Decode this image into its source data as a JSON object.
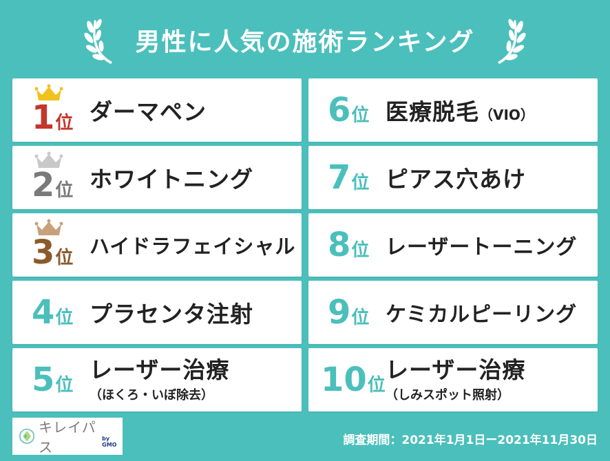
{
  "title": "男性に人気の施術ランキング",
  "rank_suffix": "位",
  "colors": {
    "background": "#4bbfbb",
    "gold": "#c4362c",
    "silver": "#7a7a7a",
    "bronze": "#8b5a2b",
    "teal_rank": "#4bbfbb",
    "crown_gold": "#f1c11d",
    "crown_silver": "#c8c8c8",
    "crown_bronze": "#c7a07c"
  },
  "ranking": [
    {
      "rank": "1",
      "name": "ダーマペン"
    },
    {
      "rank": "2",
      "name": "ホワイトニング"
    },
    {
      "rank": "3",
      "name": "ハイドラフェイシャル"
    },
    {
      "rank": "4",
      "name": "プラセンタ注射"
    },
    {
      "rank": "5",
      "name": "レーザー治療",
      "sub": "（ほくろ・いぼ除去）"
    },
    {
      "rank": "6",
      "name": "医療脱毛",
      "name_small": "（VIO）"
    },
    {
      "rank": "7",
      "name": "ピアス穴あけ"
    },
    {
      "rank": "8",
      "name": "レーザートーニング"
    },
    {
      "rank": "9",
      "name": "ケミカルピーリング"
    },
    {
      "rank": "10",
      "name": "レーザー治療",
      "sub": "（しみスポット照射）"
    }
  ],
  "logo": {
    "text": "キレイパス",
    "by": "by GMO"
  },
  "period": "調査期間：2021年1月1日ー2021年11月30日"
}
